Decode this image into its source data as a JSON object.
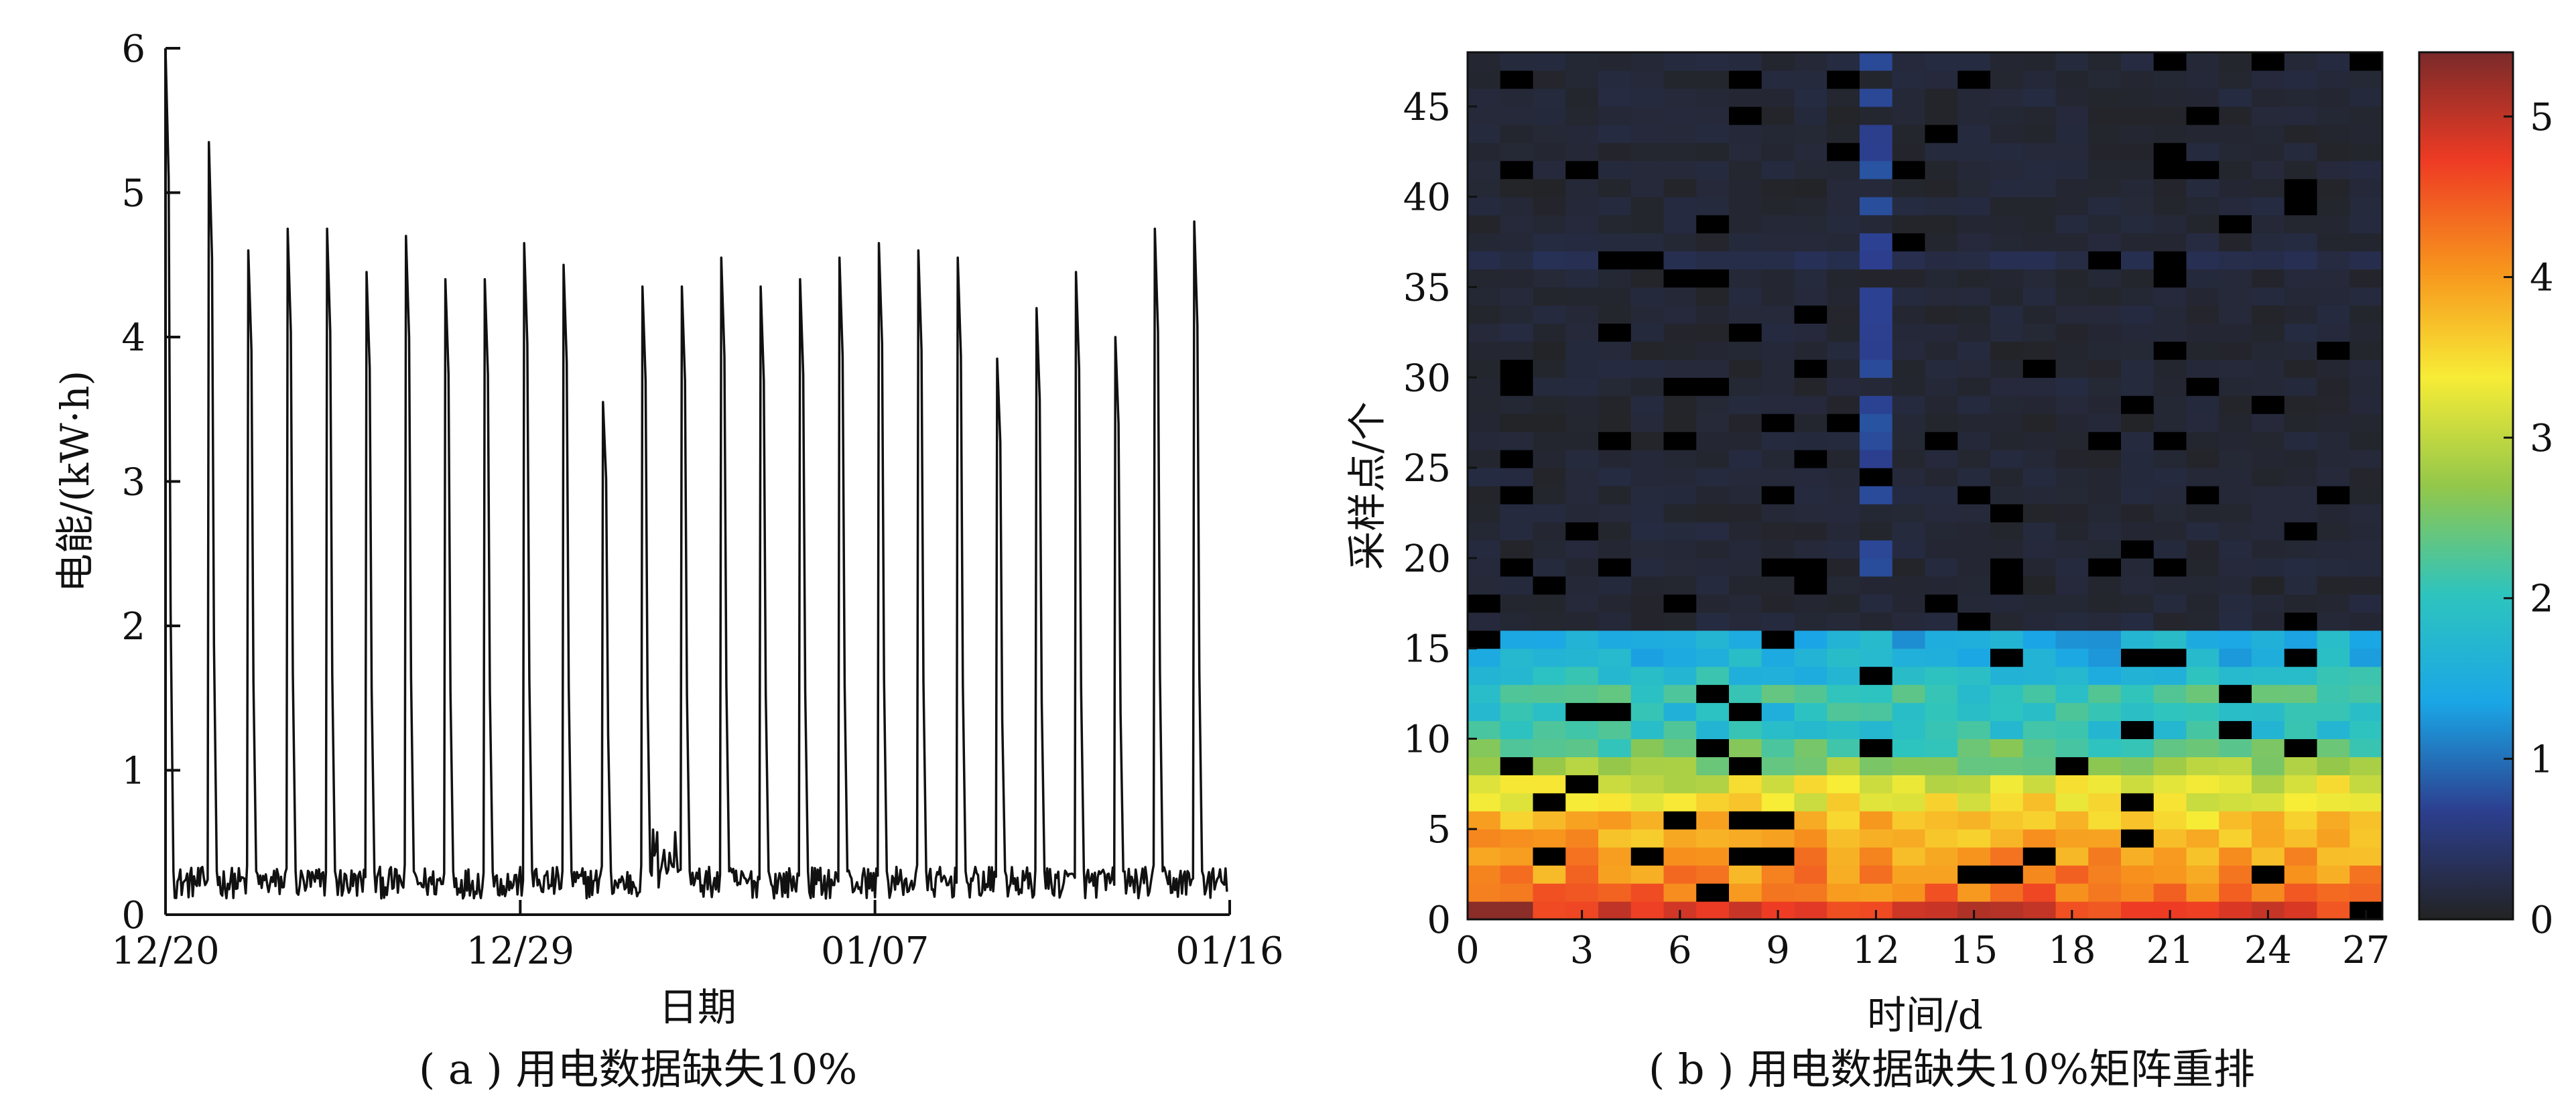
{
  "chart_data": [
    {
      "type": "line",
      "caption": "( a ) 用电数据缺失10%",
      "xlabel": "日期",
      "ylabel": "电能/(kW·h)",
      "xlim": [
        0,
        27
      ],
      "ylim": [
        0,
        6
      ],
      "x_ticks": [
        {
          "pos": 0,
          "label": "12/20"
        },
        {
          "pos": 9,
          "label": "12/29"
        },
        {
          "pos": 18,
          "label": "01/07"
        },
        {
          "pos": 27,
          "label": "01/16"
        }
      ],
      "y_ticks": [
        0,
        1,
        2,
        3,
        4,
        5,
        6
      ],
      "series": [
        {
          "line_color": "#111111",
          "baseline": 0.2,
          "peaks": [
            {
              "day": 0.0,
              "value": 6.0
            },
            {
              "day": 1.1,
              "value": 5.35
            },
            {
              "day": 2.1,
              "value": 4.6
            },
            {
              "day": 3.1,
              "value": 4.75
            },
            {
              "day": 4.1,
              "value": 4.75
            },
            {
              "day": 5.1,
              "value": 4.45
            },
            {
              "day": 6.1,
              "value": 4.7
            },
            {
              "day": 7.1,
              "value": 4.4
            },
            {
              "day": 8.1,
              "value": 4.4
            },
            {
              "day": 9.1,
              "value": 4.65
            },
            {
              "day": 10.1,
              "value": 4.5
            },
            {
              "day": 11.1,
              "value": 3.55
            },
            {
              "day": 12.1,
              "value": 4.35
            },
            {
              "day": 13.1,
              "value": 4.35
            },
            {
              "day": 14.1,
              "value": 4.55
            },
            {
              "day": 15.1,
              "value": 4.35
            },
            {
              "day": 16.1,
              "value": 4.4
            },
            {
              "day": 17.1,
              "value": 4.55
            },
            {
              "day": 18.1,
              "value": 4.65
            },
            {
              "day": 19.1,
              "value": 4.6
            },
            {
              "day": 20.1,
              "value": 4.55
            },
            {
              "day": 21.1,
              "value": 3.85
            },
            {
              "day": 22.1,
              "value": 4.2
            },
            {
              "day": 23.1,
              "value": 4.45
            },
            {
              "day": 24.1,
              "value": 4.0
            },
            {
              "day": 25.1,
              "value": 4.75
            },
            {
              "day": 26.1,
              "value": 4.8
            }
          ]
        }
      ]
    },
    {
      "type": "heatmap",
      "caption": "( b ) 用电数据缺失10%矩阵重排",
      "xlabel": "时间/d",
      "ylabel": "采样点/个",
      "xlim": [
        0,
        28
      ],
      "ylim": [
        0,
        48
      ],
      "x_ticks": [
        0,
        3,
        6,
        9,
        12,
        15,
        18,
        21,
        24,
        27
      ],
      "y_ticks": [
        0,
        5,
        10,
        15,
        20,
        25,
        30,
        35,
        40,
        45
      ],
      "colorbar": {
        "range": [
          0,
          5.4
        ],
        "ticks": [
          0,
          1,
          2,
          3,
          4,
          5
        ],
        "colors": [
          "#232323",
          "#2c3f8f",
          "#1aa6e6",
          "#2ec4be",
          "#93c74a",
          "#f7ec36",
          "#f7941d",
          "#ee3b24",
          "#7a2a2a"
        ]
      },
      "missing_color": "#000000",
      "row_levels": [
        4.8,
        4.3,
        4.1,
        4.0,
        3.9,
        3.7,
        3.4,
        3.2,
        2.7,
        2.3,
        2.0,
        1.9,
        2.1,
        1.8,
        1.6,
        1.5,
        0.12,
        0.11,
        0.1,
        0.12,
        0.11,
        0.12,
        0.1,
        0.11,
        0.12,
        0.11,
        0.12,
        0.1,
        0.11,
        0.12,
        0.11,
        0.1,
        0.12,
        0.11,
        0.12,
        0.1,
        0.25,
        0.12,
        0.11,
        0.12,
        0.1,
        0.12,
        0.11,
        0.12,
        0.1,
        0.12,
        0.11,
        0.12
      ],
      "highlight_column": {
        "day": 12,
        "value": 0.75
      }
    }
  ]
}
